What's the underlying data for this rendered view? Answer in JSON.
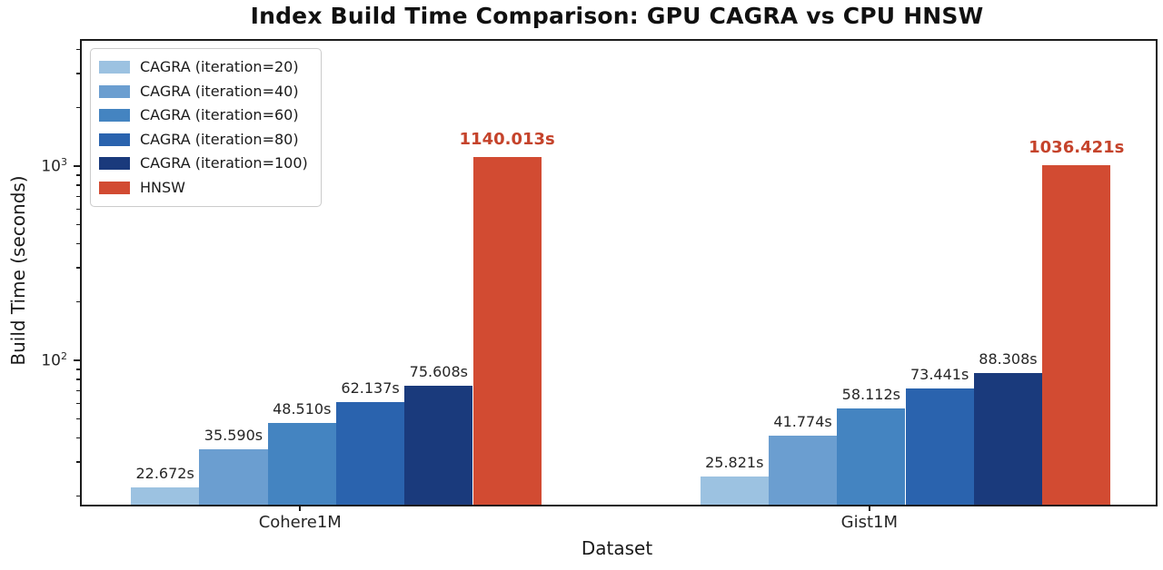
{
  "chart_data": {
    "type": "bar",
    "title": "Index Build Time Comparison: GPU CAGRA vs CPU HNSW",
    "xlabel": "Dataset",
    "ylabel": "Build Time (seconds)",
    "categories": [
      "Cohere1M",
      "Gist1M"
    ],
    "series": [
      {
        "name": "CAGRA (iteration=20)",
        "color": "#9CC2E1",
        "values": [
          22.672,
          25.821
        ],
        "labels": [
          "22.672s",
          "25.821s"
        ],
        "emphasis": false
      },
      {
        "name": "CAGRA (iteration=40)",
        "color": "#6B9ED0",
        "values": [
          35.59,
          41.774
        ],
        "labels": [
          "35.590s",
          "41.774s"
        ],
        "emphasis": false
      },
      {
        "name": "CAGRA (iteration=60)",
        "color": "#4484C1",
        "values": [
          48.51,
          58.112
        ],
        "labels": [
          "48.510s",
          "58.112s"
        ],
        "emphasis": false
      },
      {
        "name": "CAGRA (iteration=80)",
        "color": "#2A63AE",
        "values": [
          62.137,
          73.441
        ],
        "labels": [
          "62.137s",
          "73.441s"
        ],
        "emphasis": false
      },
      {
        "name": "CAGRA (iteration=100)",
        "color": "#1A3A7C",
        "values": [
          75.608,
          88.308
        ],
        "labels": [
          "75.608s",
          "88.308s"
        ],
        "emphasis": false
      },
      {
        "name": "HNSW",
        "color": "#D24B32",
        "values": [
          1140.013,
          1036.421
        ],
        "labels": [
          "1140.013s",
          "1036.421s"
        ],
        "emphasis": true
      }
    ],
    "y_scale": "log",
    "ylim": [
      18.5,
      4500
    ],
    "y_ticks": [
      {
        "value": 100,
        "base": "10",
        "exp": "2"
      },
      {
        "value": 1000,
        "base": "10",
        "exp": "3"
      }
    ],
    "grid": false,
    "legend_position": "upper left",
    "colors": {
      "axis": "#1c1c1c",
      "tick_text": "#262626",
      "emphasis_label": "#C5432B",
      "background": "#ffffff"
    }
  }
}
